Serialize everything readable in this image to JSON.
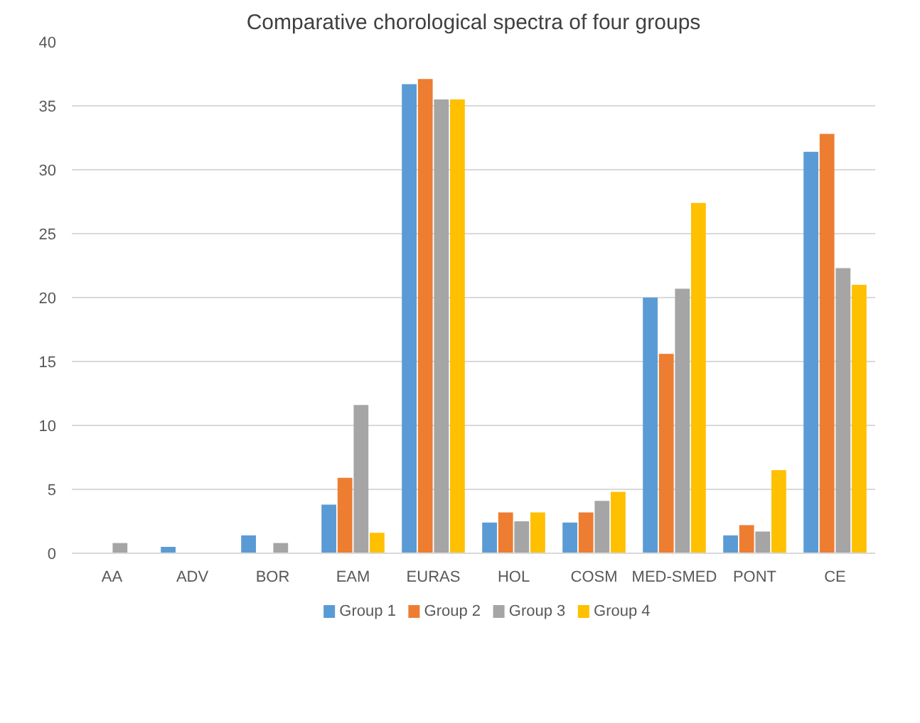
{
  "chart_data": {
    "type": "bar",
    "title": "Comparative chorological spectra of four groups",
    "categories": [
      "AA",
      "ADV",
      "BOR",
      "EAM",
      "EURAS",
      "HOL",
      "COSM",
      "MED-SMED",
      "PONT",
      "CE"
    ],
    "series": [
      {
        "name": "Group 1",
        "color": "#5b9bd5",
        "values": [
          0,
          0.5,
          1.4,
          3.8,
          36.7,
          2.4,
          2.4,
          20.0,
          1.4,
          31.4
        ]
      },
      {
        "name": "Group 2",
        "color": "#ed7d31",
        "values": [
          0,
          0,
          0,
          5.9,
          37.1,
          3.2,
          3.2,
          15.6,
          2.2,
          32.8
        ]
      },
      {
        "name": "Group 3",
        "color": "#a5a5a5",
        "values": [
          0.8,
          0,
          0.8,
          11.6,
          35.5,
          2.5,
          4.1,
          20.7,
          1.7,
          22.3
        ]
      },
      {
        "name": "Group 4",
        "color": "#ffc000",
        "values": [
          0,
          0,
          0,
          1.6,
          35.5,
          3.2,
          4.8,
          27.4,
          6.5,
          21.0
        ]
      }
    ],
    "ylim": [
      0,
      40
    ],
    "yticks": [
      0,
      5,
      10,
      15,
      20,
      25,
      30,
      35,
      40
    ],
    "grid": "y",
    "legend": "bottom"
  }
}
